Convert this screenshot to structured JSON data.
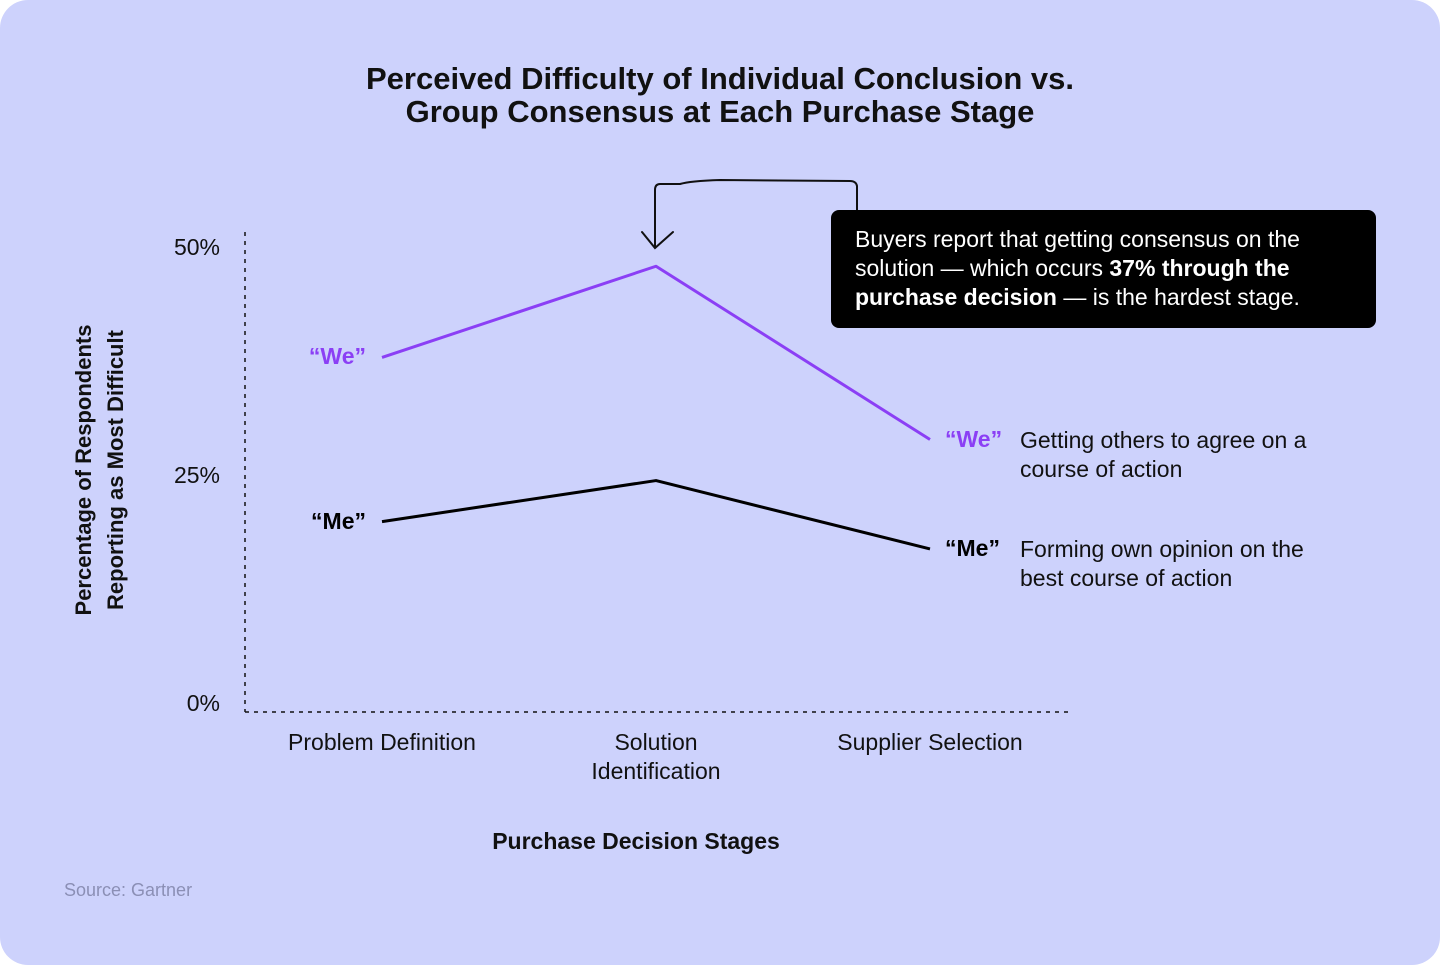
{
  "chart_data": {
    "type": "line",
    "title": "Perceived Difficulty of Individual Conclusion vs. Group Consensus at Each Purchase Stage",
    "x_label": "Purchase Decision Stages",
    "y_label": "Percentage of Respondents Reporting as Most Difficult",
    "categories": [
      "Problem Definition",
      "Solution Identification",
      "Supplier Selection"
    ],
    "ylim": [
      0,
      50
    ],
    "yticks": [
      {
        "value": 0,
        "label": "0%"
      },
      {
        "value": 25,
        "label": "25%"
      },
      {
        "value": 50,
        "label": "50%"
      }
    ],
    "series": [
      {
        "name": "“We”",
        "color": "#8b3ff5",
        "values": [
          38,
          48,
          29
        ],
        "description": "Getting others to agree on a course of action"
      },
      {
        "name": "“Me”",
        "color": "#000000",
        "values": [
          20,
          24.5,
          17
        ],
        "description": "Forming own opinion on the best course of action"
      }
    ],
    "annotation": [
      "Buyers report that getting consensus on the solution — which occurs ",
      "37% through the purchase decision",
      " — is the hardest stage."
    ],
    "source": "Source: Gartner"
  }
}
